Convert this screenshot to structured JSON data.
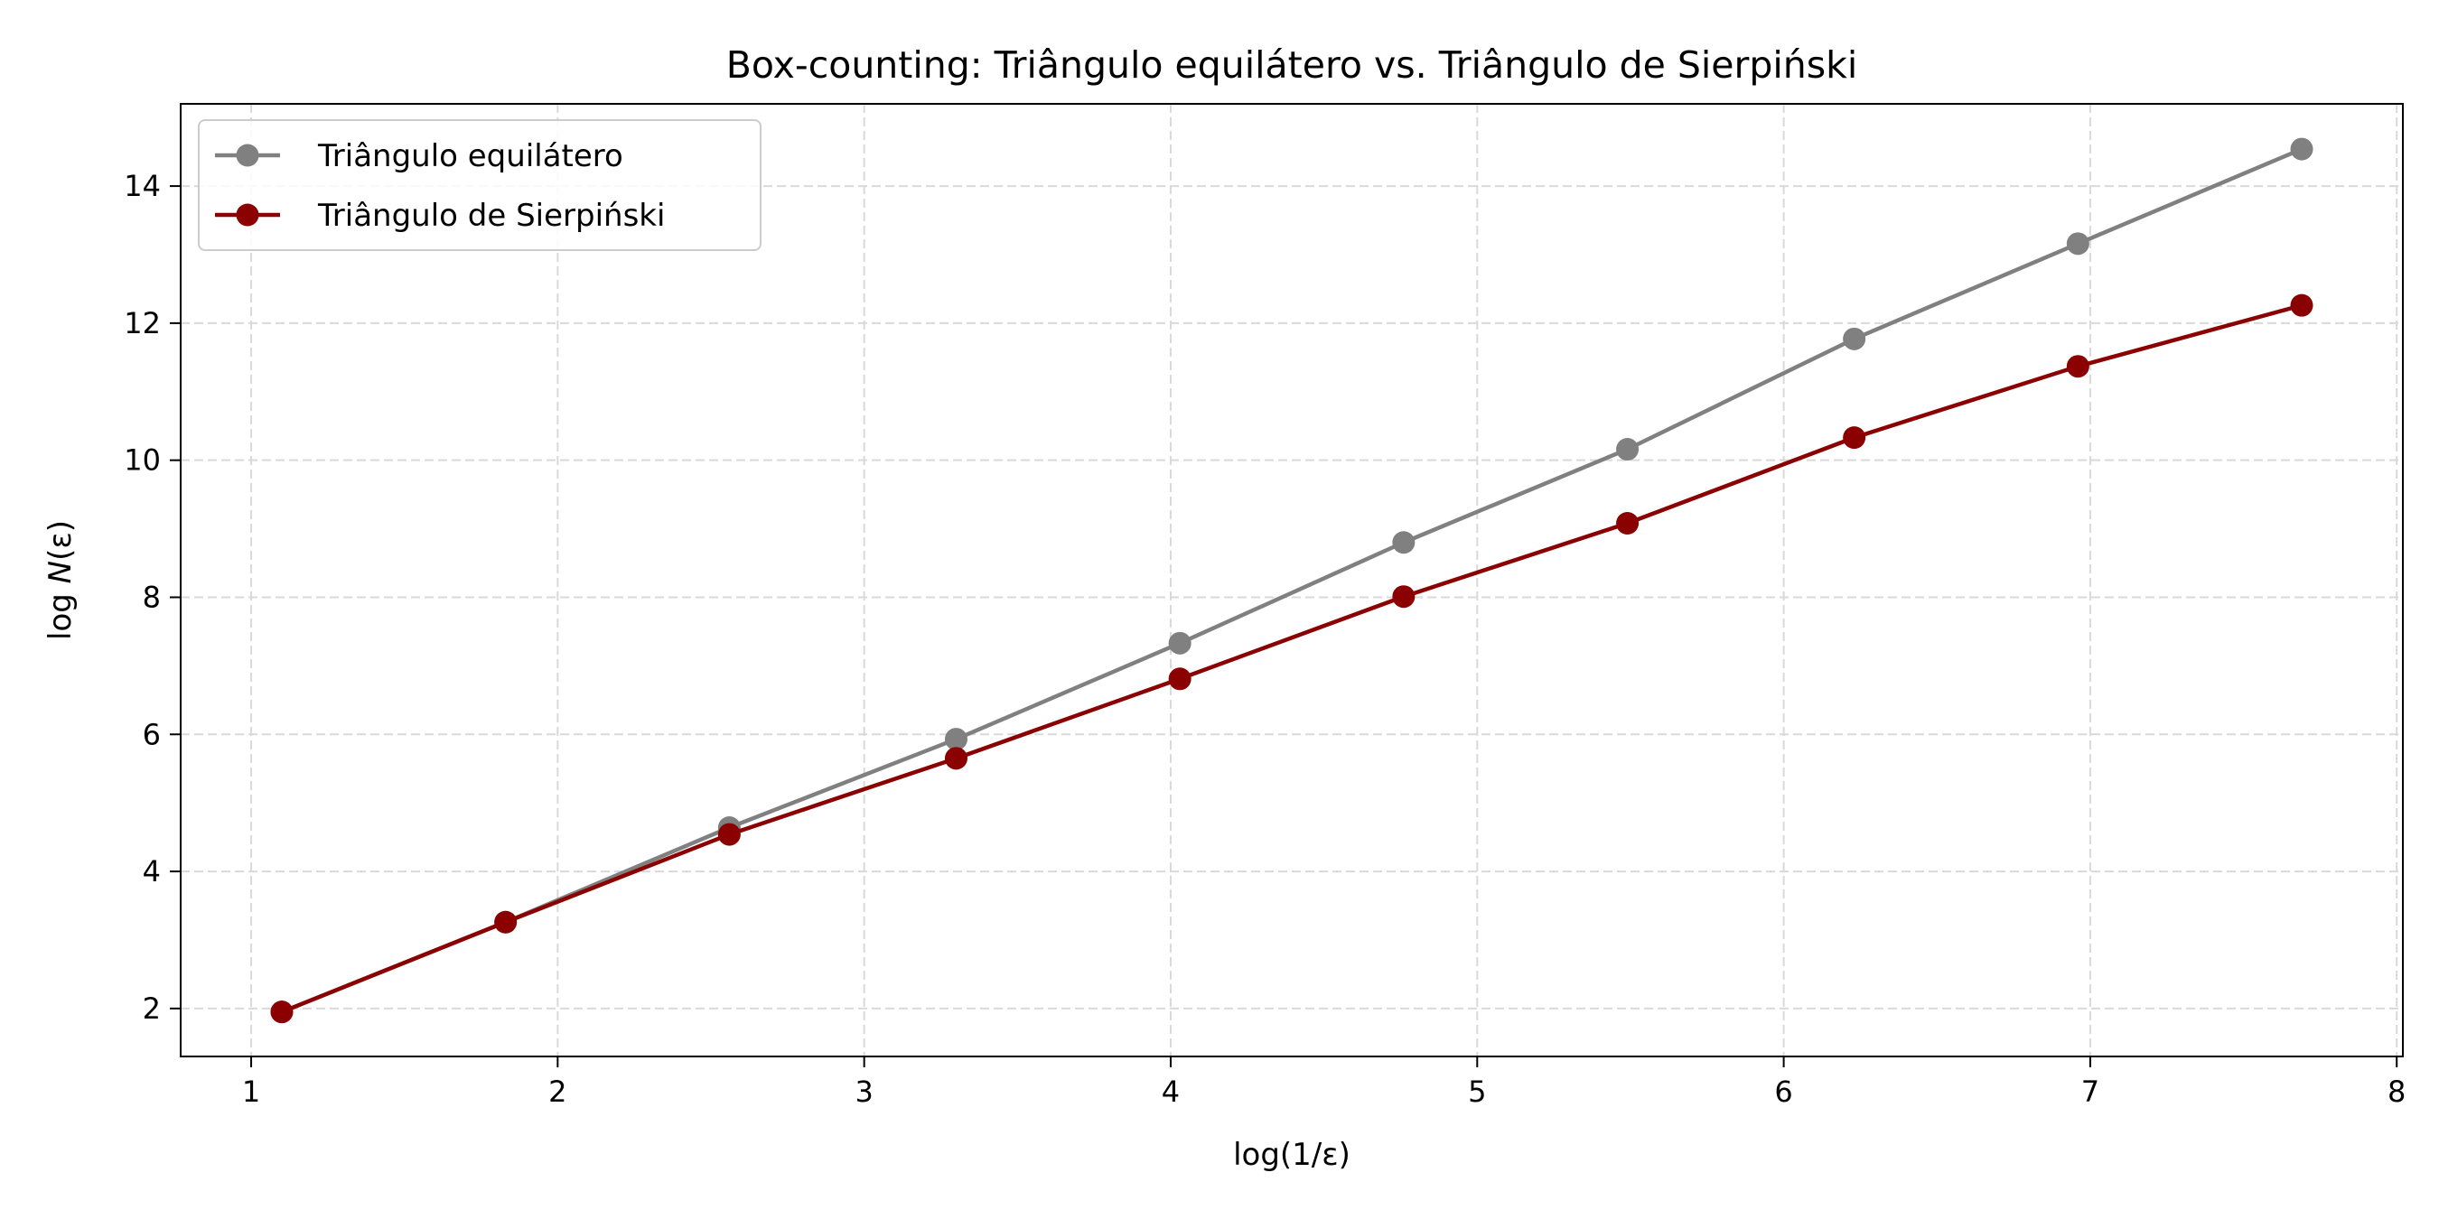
{
  "chart_data": {
    "type": "line",
    "title": "Box-counting: Triângulo equilátero vs. Triângulo de Sierpiński",
    "xlabel": "log(1/ε)",
    "ylabel_prefix": "log ",
    "ylabel_var": "N",
    "ylabel_suffix": "(ε)",
    "xlim": [
      0.77,
      8.02
    ],
    "ylim": [
      1.3,
      15.2
    ],
    "xticks": [
      1,
      2,
      3,
      4,
      5,
      6,
      7,
      8
    ],
    "yticks": [
      2,
      4,
      6,
      8,
      10,
      12,
      14
    ],
    "grid": true,
    "legend_position": "top-left",
    "x": [
      1.1,
      1.83,
      2.56,
      3.3,
      4.03,
      4.76,
      5.49,
      6.23,
      6.96,
      7.69
    ],
    "series": [
      {
        "name": "Triângulo equilátero",
        "color": "#808080",
        "values": [
          1.95,
          3.26,
          4.64,
          5.93,
          7.33,
          8.8,
          10.16,
          11.77,
          13.16,
          14.54
        ]
      },
      {
        "name": "Triângulo de Sierpiński",
        "color": "#8b0000",
        "values": [
          1.95,
          3.26,
          4.54,
          5.65,
          6.81,
          8.01,
          9.08,
          10.33,
          11.37,
          12.26
        ]
      }
    ]
  }
}
